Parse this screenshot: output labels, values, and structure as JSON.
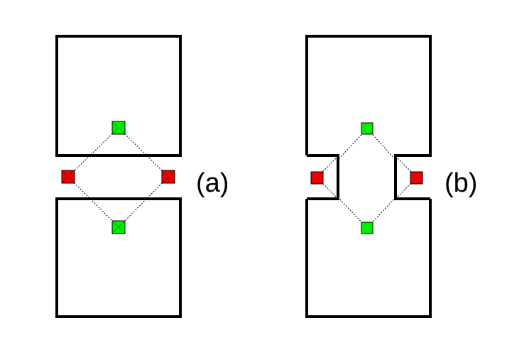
{
  "labels": {
    "a": "(a)",
    "b": "(b)"
  },
  "colors": {
    "outline": "#000000",
    "green_node": "#00ee00",
    "red_node": "#ee0000",
    "connector": "#000000"
  }
}
